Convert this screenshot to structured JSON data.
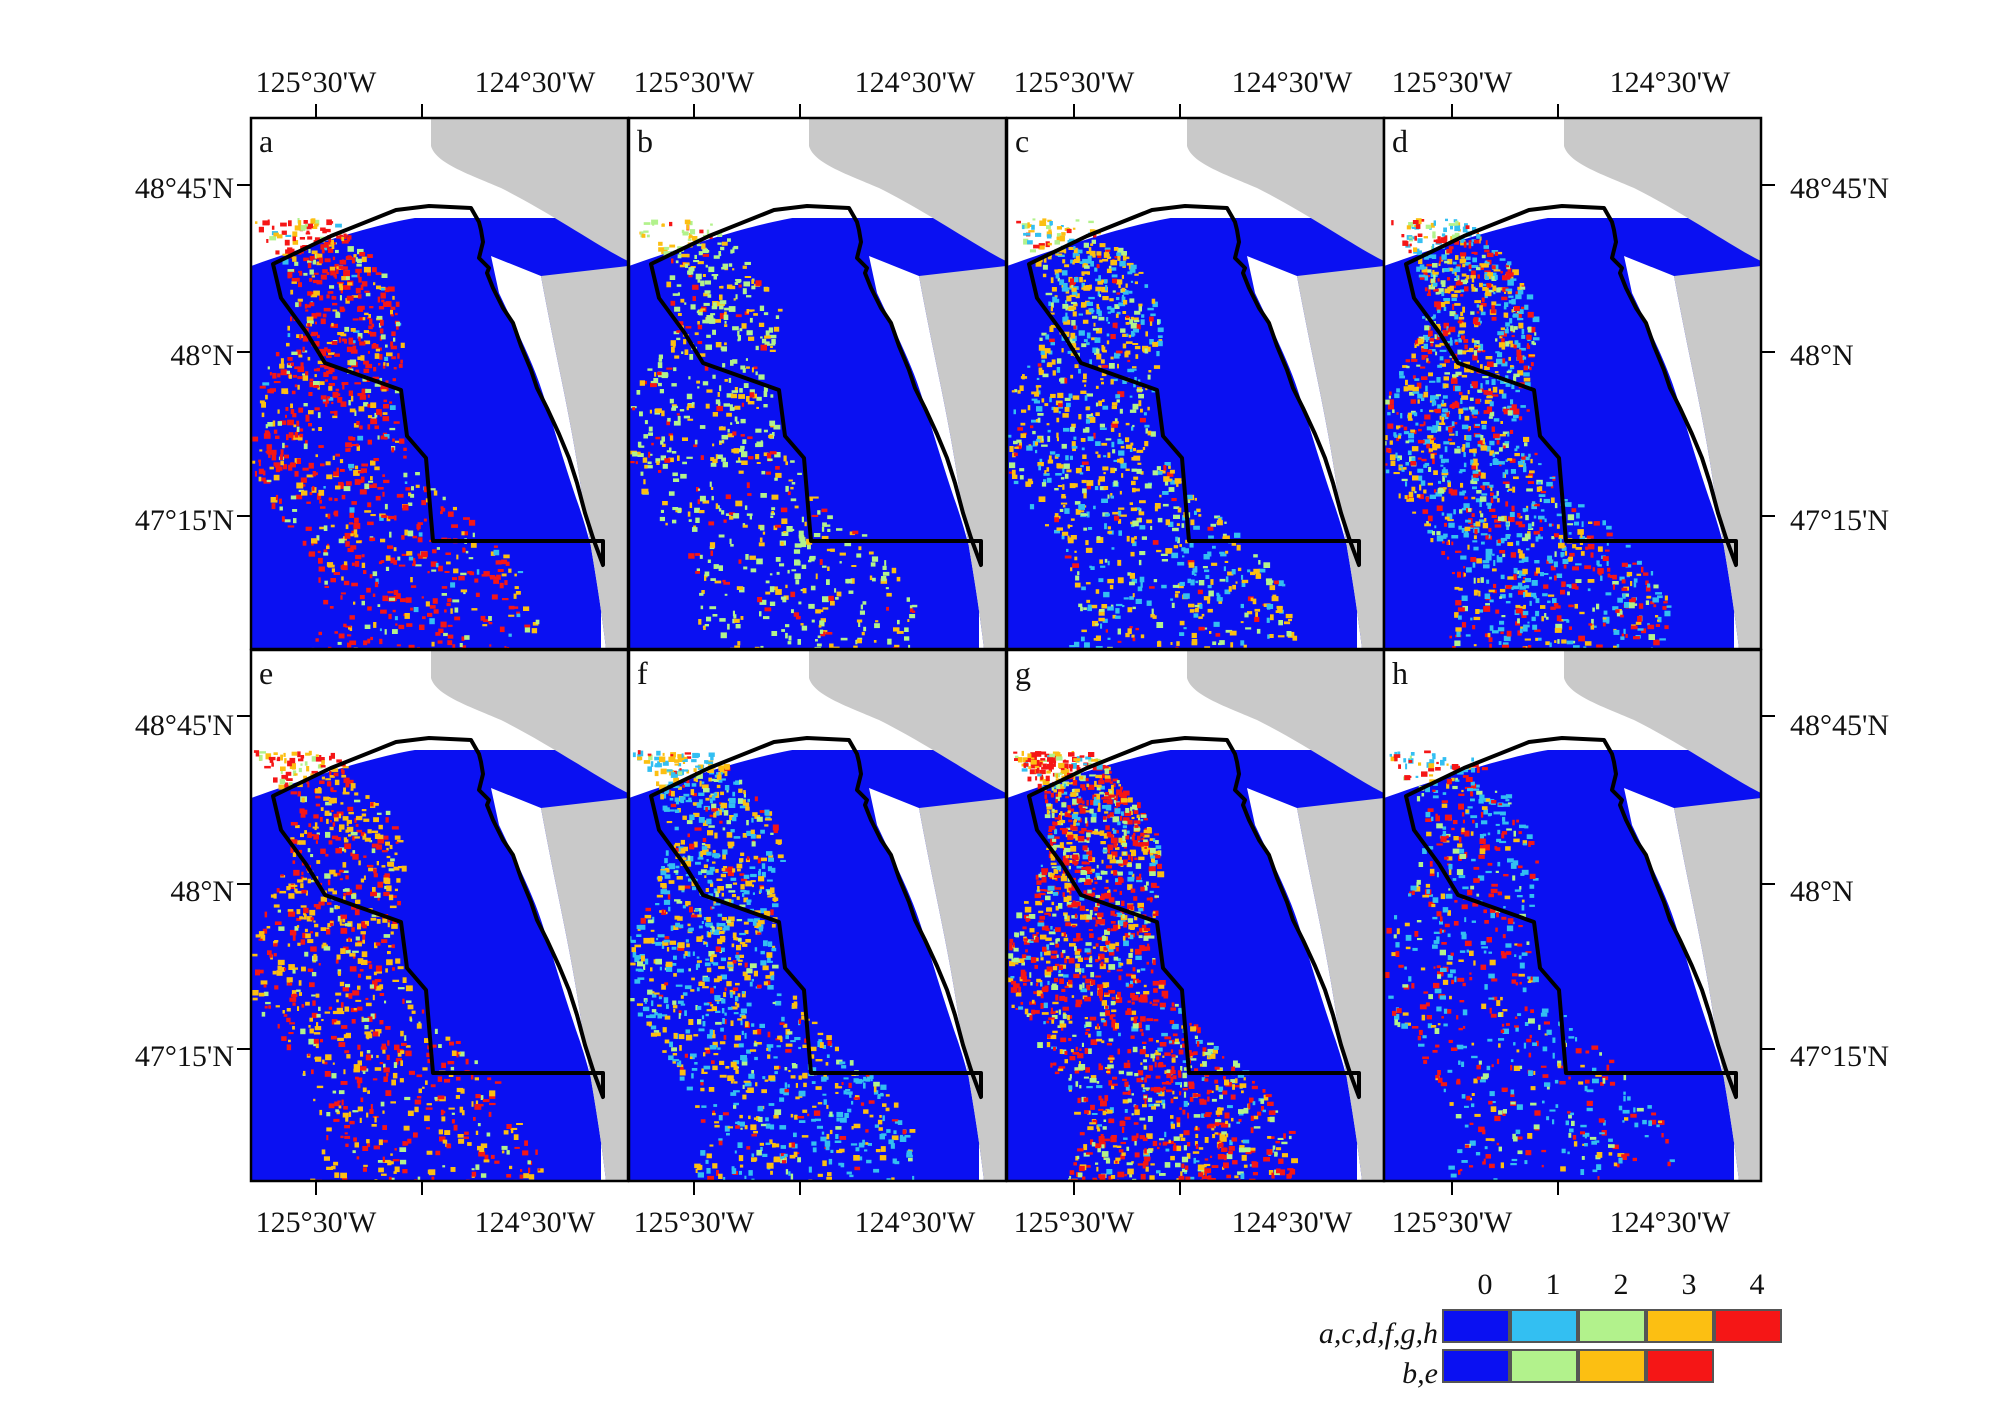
{
  "panels": [
    {
      "id": "a",
      "label": "a",
      "palette": "p5",
      "mix": [
        0.62,
        0.02,
        0.05,
        0.09,
        0.22
      ]
    },
    {
      "id": "b",
      "label": "b",
      "palette": "p4",
      "mix": [
        0.72,
        0.16,
        0.09,
        0.03,
        0.0
      ]
    },
    {
      "id": "c",
      "label": "c",
      "palette": "p5",
      "mix": [
        0.6,
        0.12,
        0.08,
        0.17,
        0.03
      ]
    },
    {
      "id": "d",
      "label": "d",
      "palette": "p5",
      "mix": [
        0.45,
        0.2,
        0.06,
        0.14,
        0.15
      ]
    },
    {
      "id": "e",
      "label": "e",
      "palette": "p4",
      "mix": [
        0.66,
        0.04,
        0.16,
        0.14,
        0.0
      ]
    },
    {
      "id": "f",
      "label": "f",
      "palette": "p5",
      "mix": [
        0.55,
        0.18,
        0.04,
        0.18,
        0.05
      ]
    },
    {
      "id": "g",
      "label": "g",
      "palette": "p5",
      "mix": [
        0.36,
        0.06,
        0.12,
        0.16,
        0.3
      ]
    },
    {
      "id": "h",
      "label": "h",
      "palette": "p5",
      "mix": [
        0.74,
        0.1,
        0.03,
        0.04,
        0.09
      ]
    }
  ],
  "axes": {
    "lon_ticks": [
      "125°30'W",
      "124°30'W"
    ],
    "lat_ticks_top": [
      "48°45'N",
      "48°N",
      "47°15'N"
    ],
    "lat_ticks_bottom": [
      "48°45'N",
      "48°N",
      "47°15'N"
    ]
  },
  "legend": {
    "values": [
      "0",
      "1",
      "2",
      "3",
      "4"
    ],
    "row1_label": "a,c,d,f,g,h",
    "row2_label": "b,e",
    "palette_p5": [
      "#0a10f2",
      "#33bff2",
      "#b2f28c",
      "#fcbf12",
      "#f51616"
    ],
    "palette_p4": [
      "#0a10f2",
      "#b2f28c",
      "#fcbf12",
      "#f51616"
    ]
  },
  "colors": {
    "ocean": "#0a10f2",
    "land": "#c9c9c9",
    "boundary": "#000000"
  }
}
